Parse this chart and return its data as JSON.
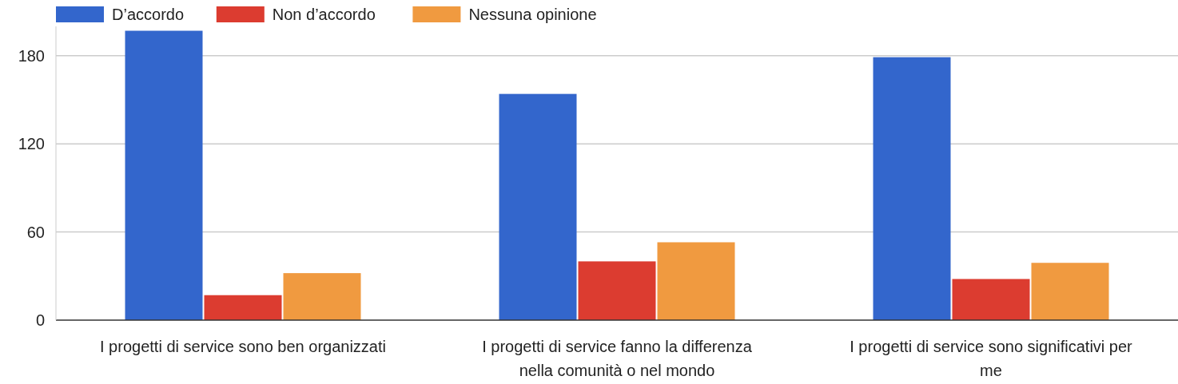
{
  "chart_data": {
    "type": "bar",
    "categories": [
      "I progetti di service sono ben organizzati",
      "I progetti di service fanno la differenza nella comunità o nel mondo",
      "I progetti di service sono significativi per me"
    ],
    "series": [
      {
        "name": "D’accordo",
        "color": "#3366cc",
        "values": [
          197,
          154,
          179
        ]
      },
      {
        "name": "Non d’accordo",
        "color": "#dc3c30",
        "values": [
          17,
          40,
          28
        ]
      },
      {
        "name": "Nessuna opinione",
        "color": "#f09a40",
        "values": [
          32,
          53,
          39
        ]
      }
    ],
    "ylim": [
      0,
      200
    ],
    "yticks": [
      0,
      60,
      120,
      180
    ],
    "grid": "y",
    "legend": "top left"
  }
}
